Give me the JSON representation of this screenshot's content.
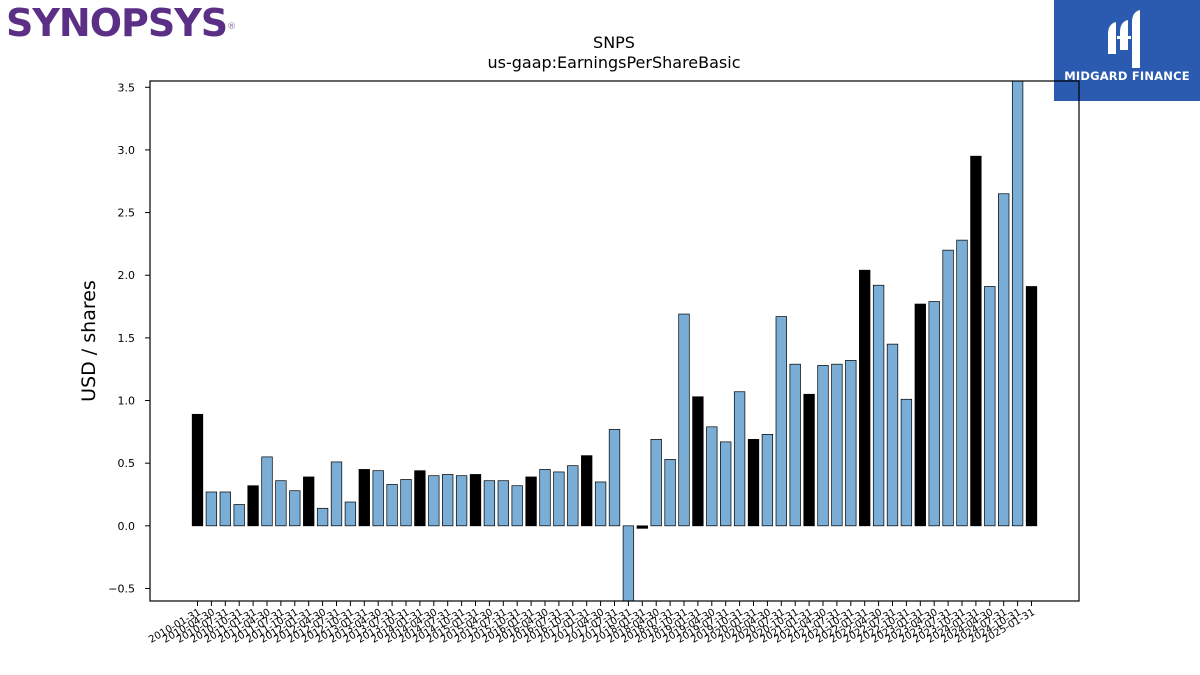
{
  "brand": {
    "logo_text": "SYNOPSYS",
    "logo_mark": "®"
  },
  "partner": {
    "name": "MIDGARD FINANCE"
  },
  "chart_data": {
    "type": "bar",
    "title": "SNPS",
    "subtitle": "us-gaap:EarningsPerShareBasic",
    "ylabel": "USD / shares",
    "xlabel": "",
    "ylim": [
      -0.6,
      3.55
    ],
    "yticks": [
      -0.5,
      0.0,
      0.5,
      1.0,
      1.5,
      2.0,
      2.5,
      3.0,
      3.5
    ],
    "grid": false,
    "colors": {
      "annual": "#000000",
      "quarterly": "#7aaed6"
    },
    "categories": [
      "2010-01-31",
      "2010-04-30",
      "2010-07-31",
      "2010-10-31",
      "2011-01-31",
      "2011-04-30",
      "2011-07-31",
      "2011-10-31",
      "2012-01-31",
      "2012-04-30",
      "2012-07-31",
      "2012-10-31",
      "2013-01-31",
      "2013-04-30",
      "2013-07-31",
      "2013-10-31",
      "2014-01-31",
      "2014-04-30",
      "2014-07-31",
      "2014-10-31",
      "2015-01-31",
      "2015-04-30",
      "2015-07-31",
      "2015-10-31",
      "2016-01-31",
      "2016-04-30",
      "2016-07-31",
      "2016-10-31",
      "2017-01-31",
      "2017-04-30",
      "2017-07-31",
      "2017-10-31",
      "2018-01-31",
      "2018-04-30",
      "2018-07-31",
      "2018-10-31",
      "2019-01-31",
      "2019-04-30",
      "2019-07-31",
      "2019-10-31",
      "2020-01-31",
      "2020-04-30",
      "2020-07-31",
      "2020-10-31",
      "2021-01-31",
      "2021-04-30",
      "2021-07-31",
      "2021-10-31",
      "2022-01-31",
      "2022-04-30",
      "2022-07-31",
      "2022-10-31",
      "2023-01-31",
      "2023-04-30",
      "2023-07-31",
      "2023-10-31",
      "2024-01-31",
      "2024-04-30",
      "2024-07-31",
      "2024-10-31",
      "2025-01-31"
    ],
    "values": [
      0.89,
      0.27,
      0.27,
      0.17,
      0.32,
      0.55,
      0.36,
      0.28,
      0.39,
      0.14,
      0.51,
      0.19,
      0.45,
      0.44,
      0.33,
      0.37,
      0.44,
      0.4,
      0.41,
      0.4,
      0.41,
      0.36,
      0.36,
      0.32,
      0.39,
      0.45,
      0.43,
      0.48,
      0.56,
      0.35,
      0.77,
      -0.6,
      -0.02,
      0.69,
      0.53,
      1.69,
      1.03,
      0.79,
      0.67,
      1.07,
      0.69,
      0.73,
      1.67,
      1.29,
      1.05,
      1.28,
      1.29,
      1.32,
      2.04,
      1.92,
      1.45,
      1.01,
      1.77,
      1.79,
      2.2,
      2.28,
      2.95,
      1.91,
      2.65,
      3.55,
      1.91
    ],
    "is_annual": [
      true,
      false,
      false,
      false,
      true,
      false,
      false,
      false,
      true,
      false,
      false,
      false,
      true,
      false,
      false,
      false,
      true,
      false,
      false,
      false,
      true,
      false,
      false,
      false,
      true,
      false,
      false,
      false,
      true,
      false,
      false,
      false,
      true,
      false,
      false,
      false,
      true,
      false,
      false,
      false,
      true,
      false,
      false,
      false,
      true,
      false,
      false,
      false,
      true,
      false,
      false,
      false,
      true,
      false,
      false,
      false,
      true,
      false,
      false,
      false,
      true
    ]
  }
}
